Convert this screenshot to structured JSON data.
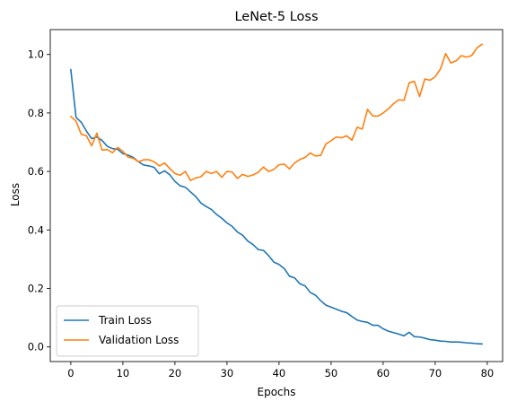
{
  "chart_data": {
    "type": "line",
    "title": "LeNet-5 Loss",
    "xlabel": "Epochs",
    "ylabel": "Loss",
    "xlim": [
      -3.95,
      82.95
    ],
    "ylim": [
      -0.05,
      1.085
    ],
    "xticks": [
      0,
      10,
      20,
      30,
      40,
      50,
      60,
      70,
      80
    ],
    "yticks": [
      0.0,
      0.2,
      0.4,
      0.6,
      0.8,
      1.0
    ],
    "xtick_labels": [
      "0",
      "10",
      "20",
      "30",
      "40",
      "50",
      "60",
      "70",
      "80"
    ],
    "ytick_labels": [
      "0.0",
      "0.2",
      "0.4",
      "0.6",
      "0.8",
      "1.0"
    ],
    "grid": false,
    "legend_position": "lower-left",
    "legend": [
      {
        "label": "Train Loss",
        "color": "#1f77b4"
      },
      {
        "label": "Validation Loss",
        "color": "#ff7f0e"
      }
    ],
    "x": [
      0,
      1,
      2,
      3,
      4,
      5,
      6,
      7,
      8,
      9,
      10,
      11,
      12,
      13,
      14,
      15,
      16,
      17,
      18,
      19,
      20,
      21,
      22,
      23,
      24,
      25,
      26,
      27,
      28,
      29,
      30,
      31,
      32,
      33,
      34,
      35,
      36,
      37,
      38,
      39,
      40,
      41,
      42,
      43,
      44,
      45,
      46,
      47,
      48,
      49,
      50,
      51,
      52,
      53,
      54,
      55,
      56,
      57,
      58,
      59,
      60,
      61,
      62,
      63,
      64,
      65,
      66,
      67,
      68,
      69,
      70,
      71,
      72,
      73,
      74,
      75,
      76,
      77,
      78,
      79
    ],
    "series": [
      {
        "name": "Train Loss",
        "color": "#1f77b4",
        "values": [
          0.948,
          0.785,
          0.768,
          0.738,
          0.712,
          0.718,
          0.706,
          0.686,
          0.678,
          0.676,
          0.661,
          0.656,
          0.648,
          0.633,
          0.622,
          0.619,
          0.614,
          0.592,
          0.602,
          0.589,
          0.566,
          0.551,
          0.546,
          0.53,
          0.514,
          0.492,
          0.48,
          0.47,
          0.453,
          0.44,
          0.424,
          0.412,
          0.393,
          0.382,
          0.362,
          0.35,
          0.333,
          0.33,
          0.312,
          0.29,
          0.282,
          0.268,
          0.242,
          0.236,
          0.216,
          0.209,
          0.186,
          0.177,
          0.158,
          0.143,
          0.136,
          0.129,
          0.122,
          0.117,
          0.104,
          0.092,
          0.087,
          0.084,
          0.074,
          0.074,
          0.062,
          0.054,
          0.049,
          0.044,
          0.038,
          0.05,
          0.035,
          0.034,
          0.03,
          0.025,
          0.023,
          0.02,
          0.019,
          0.017,
          0.017,
          0.016,
          0.014,
          0.013,
          0.011,
          0.01
        ]
      },
      {
        "name": "Validation Loss",
        "color": "#ff7f0e",
        "values": [
          0.788,
          0.772,
          0.727,
          0.722,
          0.688,
          0.731,
          0.673,
          0.675,
          0.664,
          0.682,
          0.669,
          0.649,
          0.645,
          0.633,
          0.64,
          0.64,
          0.633,
          0.619,
          0.629,
          0.61,
          0.593,
          0.587,
          0.6,
          0.569,
          0.578,
          0.582,
          0.6,
          0.593,
          0.6,
          0.58,
          0.6,
          0.598,
          0.576,
          0.59,
          0.583,
          0.588,
          0.597,
          0.615,
          0.6,
          0.607,
          0.623,
          0.625,
          0.609,
          0.629,
          0.641,
          0.648,
          0.663,
          0.653,
          0.655,
          0.694,
          0.705,
          0.718,
          0.715,
          0.722,
          0.707,
          0.751,
          0.745,
          0.812,
          0.79,
          0.789,
          0.8,
          0.814,
          0.832,
          0.845,
          0.843,
          0.903,
          0.908,
          0.856,
          0.916,
          0.912,
          0.924,
          0.95,
          1.003,
          0.971,
          0.978,
          0.996,
          0.991,
          0.996,
          1.022,
          1.035
        ]
      }
    ]
  }
}
